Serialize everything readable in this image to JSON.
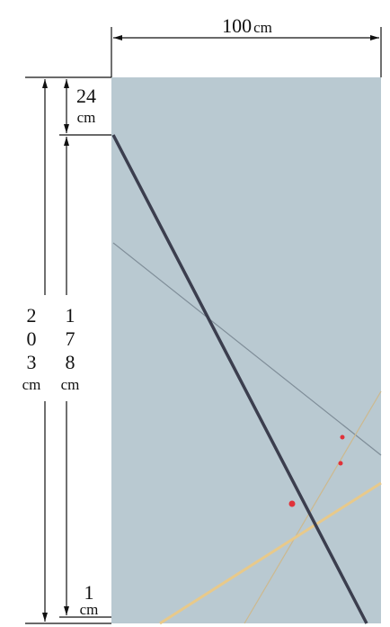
{
  "dimensions": {
    "width": {
      "value": "100",
      "unit": "cm"
    },
    "total_height": {
      "digits": [
        "2",
        "0",
        "3"
      ],
      "unit": "cm"
    },
    "top_margin": {
      "value": "24",
      "unit": "cm"
    },
    "main_height": {
      "digits": [
        "1",
        "7",
        "8"
      ],
      "unit": "cm"
    },
    "bottom_margin": {
      "value": "1",
      "unit": "cm"
    }
  },
  "colors": {
    "panel": "#b9c9d1",
    "dark_line": "#3b3e4e",
    "thin_line": "#7f8d98",
    "yellow_line": "#e8c98a",
    "thin_yellow_line": "#cdb98e",
    "red_dot": "#e0323a",
    "dimension_line": "#111111"
  }
}
